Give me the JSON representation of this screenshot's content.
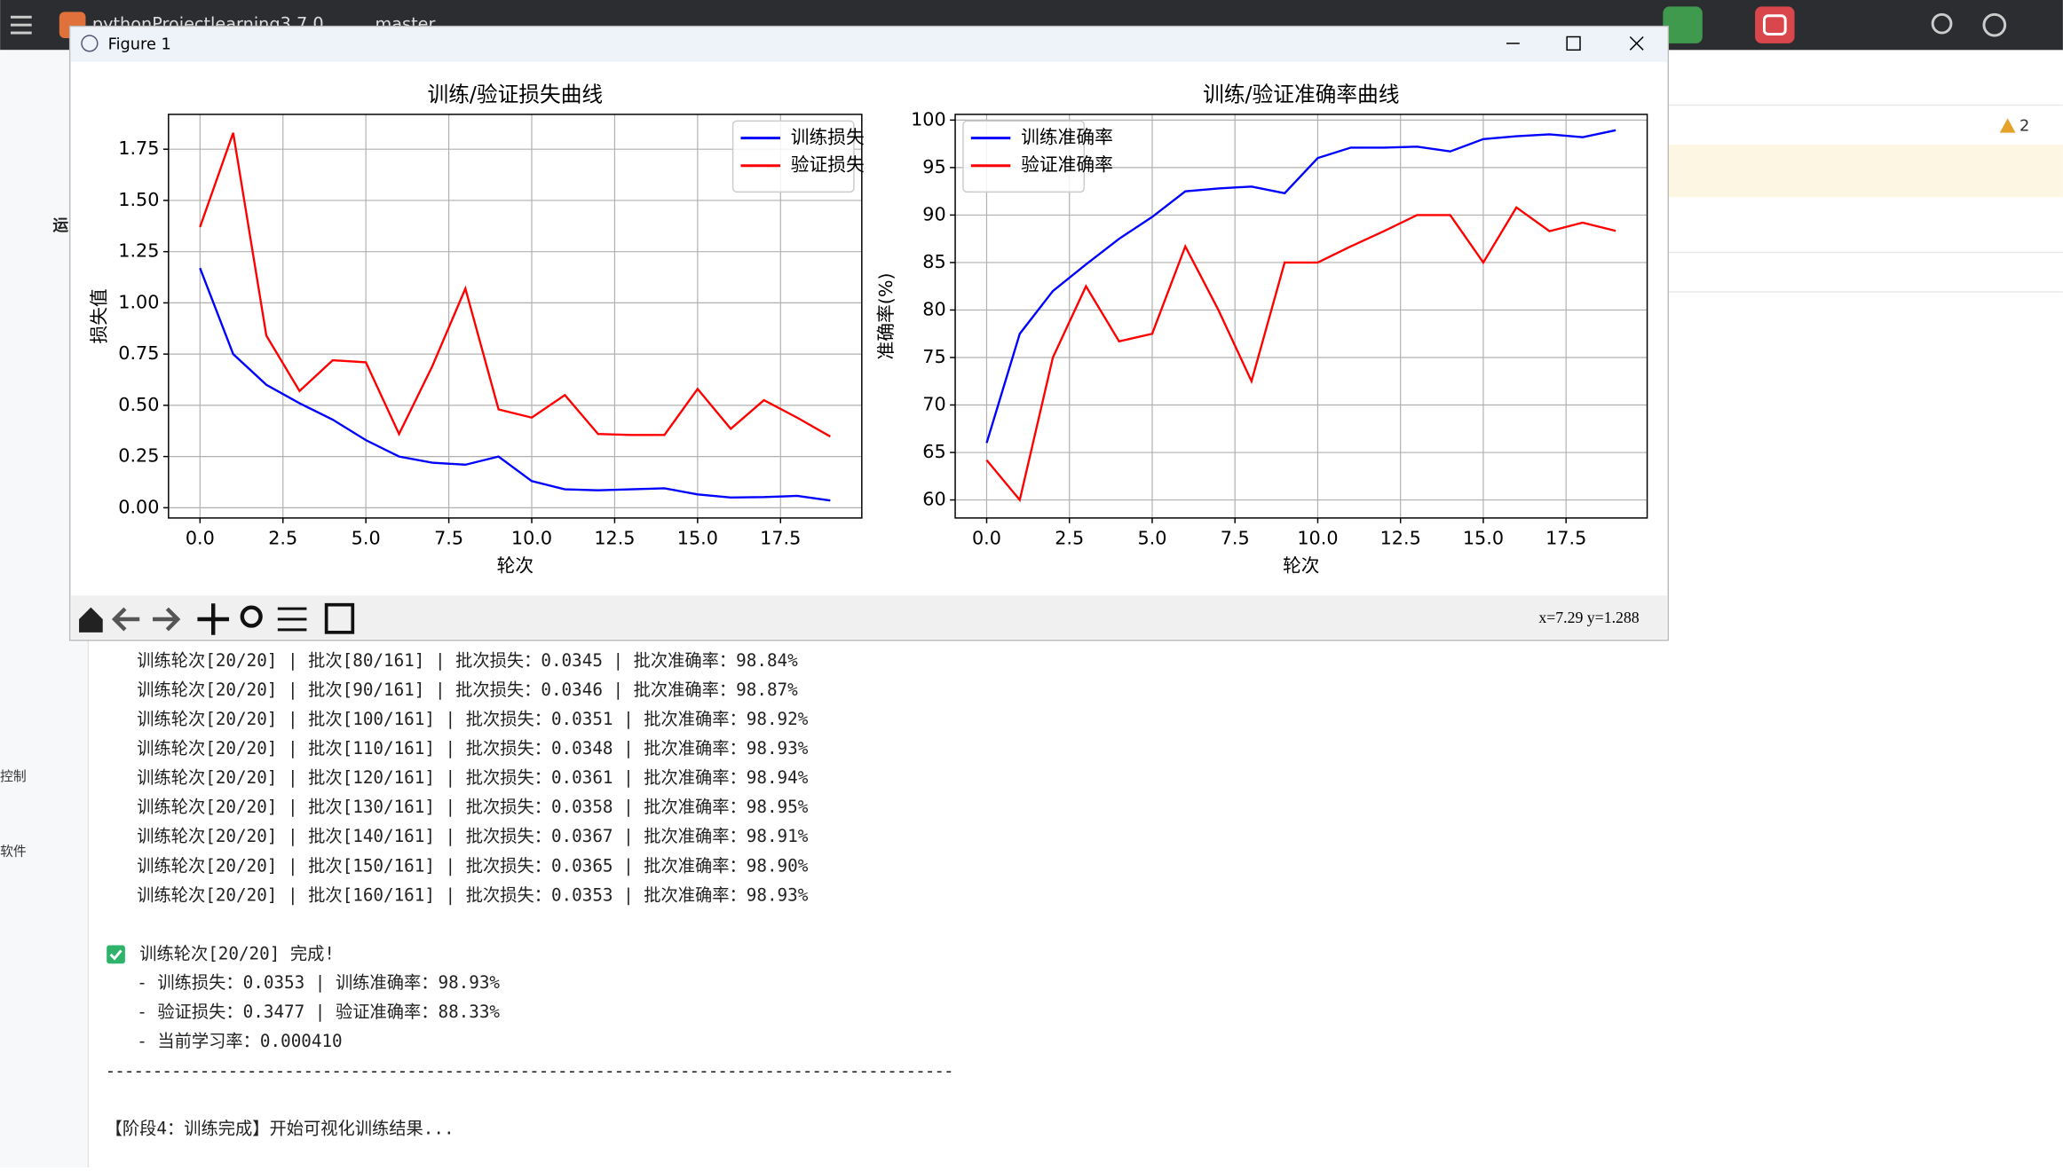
{
  "ide": {
    "project": "pythonProjectlearning3.7.0",
    "branch": "master",
    "sidebar": [
      "运",
      "控制",
      "软件"
    ],
    "warnings": "2"
  },
  "window": {
    "title": "Figure 1",
    "status": "x=7.29  y=1.288"
  },
  "chart_data": [
    {
      "type": "line",
      "title": "训练/验证损失曲线",
      "xlabel": "轮次",
      "ylabel": "损失值",
      "x": [
        0,
        1,
        2,
        3,
        4,
        5,
        6,
        7,
        8,
        9,
        10,
        11,
        12,
        13,
        14,
        15,
        16,
        17,
        18,
        19
      ],
      "series": [
        {
          "name": "训练损失",
          "color": "#0000ff",
          "values": [
            1.17,
            0.75,
            0.6,
            0.51,
            0.43,
            0.33,
            0.25,
            0.22,
            0.21,
            0.25,
            0.13,
            0.09,
            0.085,
            0.09,
            0.095,
            0.065,
            0.05,
            0.052,
            0.058,
            0.0353
          ]
        },
        {
          "name": "验证损失",
          "color": "#ff0000",
          "values": [
            1.37,
            1.83,
            0.84,
            0.57,
            0.72,
            0.71,
            0.36,
            0.69,
            1.07,
            0.48,
            0.44,
            0.55,
            0.36,
            0.355,
            0.355,
            0.58,
            0.385,
            0.525,
            0.44,
            0.3477
          ]
        }
      ],
      "xlim": [
        -0.95,
        19.95
      ],
      "ylim": [
        -0.05,
        1.92
      ],
      "xticks": [
        {
          "value": 0,
          "label": "0.0"
        },
        {
          "value": 2.5,
          "label": "2.5"
        },
        {
          "value": 5,
          "label": "5.0"
        },
        {
          "value": 7.5,
          "label": "7.5"
        },
        {
          "value": 10,
          "label": "10.0"
        },
        {
          "value": 12.5,
          "label": "12.5"
        },
        {
          "value": 15,
          "label": "15.0"
        },
        {
          "value": 17.5,
          "label": "17.5"
        }
      ],
      "yticks": [
        {
          "value": 0,
          "label": "0.00"
        },
        {
          "value": 0.25,
          "label": "0.25"
        },
        {
          "value": 0.5,
          "label": "0.50"
        },
        {
          "value": 0.75,
          "label": "0.75"
        },
        {
          "value": 1,
          "label": "1.00"
        },
        {
          "value": 1.25,
          "label": "1.25"
        },
        {
          "value": 1.5,
          "label": "1.50"
        },
        {
          "value": 1.75,
          "label": "1.75"
        }
      ],
      "grid": true,
      "legend": "upper right"
    },
    {
      "type": "line",
      "title": "训练/验证准确率曲线",
      "xlabel": "轮次",
      "ylabel": "准确率(%)",
      "x": [
        0,
        1,
        2,
        3,
        4,
        5,
        6,
        7,
        8,
        9,
        10,
        11,
        12,
        13,
        14,
        15,
        16,
        17,
        18,
        19
      ],
      "series": [
        {
          "name": "训练准确率",
          "color": "#0000ff",
          "values": [
            66,
            77.5,
            82,
            84.8,
            87.5,
            89.8,
            92.5,
            92.8,
            93,
            92.3,
            96,
            97.1,
            97.1,
            97.2,
            96.7,
            98,
            98.3,
            98.5,
            98.2,
            98.93
          ]
        },
        {
          "name": "验证准确率",
          "color": "#ff0000",
          "values": [
            64.2,
            60,
            75,
            82.5,
            76.7,
            77.5,
            86.7,
            80,
            72.5,
            85,
            85,
            86.7,
            88.3,
            90,
            90,
            85,
            90.8,
            88.3,
            89.2,
            88.33
          ]
        }
      ],
      "xlim": [
        -0.95,
        19.95
      ],
      "ylim": [
        58.1,
        100.6
      ],
      "xticks": [
        {
          "value": 0,
          "label": "0.0"
        },
        {
          "value": 2.5,
          "label": "2.5"
        },
        {
          "value": 5,
          "label": "5.0"
        },
        {
          "value": 7.5,
          "label": "7.5"
        },
        {
          "value": 10,
          "label": "10.0"
        },
        {
          "value": 12.5,
          "label": "12.5"
        },
        {
          "value": 15,
          "label": "15.0"
        },
        {
          "value": 17.5,
          "label": "17.5"
        }
      ],
      "yticks": [
        60,
        65,
        70,
        75,
        80,
        85,
        90,
        95,
        100
      ],
      "grid": true,
      "legend": "upper left"
    }
  ],
  "console": {
    "lines": [
      "训练轮次[20/20] | 批次[80/161] | 批次损失：0.0345 | 批次准确率：98.84%",
      "训练轮次[20/20] | 批次[90/161] | 批次损失：0.0346 | 批次准确率：98.87%",
      "训练轮次[20/20] | 批次[100/161] | 批次损失：0.0351 | 批次准确率：98.92%",
      "训练轮次[20/20] | 批次[110/161] | 批次损失：0.0348 | 批次准确率：98.93%",
      "训练轮次[20/20] | 批次[120/161] | 批次损失：0.0361 | 批次准确率：98.94%",
      "训练轮次[20/20] | 批次[130/161] | 批次损失：0.0358 | 批次准确率：98.95%",
      "训练轮次[20/20] | 批次[140/161] | 批次损失：0.0367 | 批次准确率：98.91%",
      "训练轮次[20/20] | 批次[150/161] | 批次损失：0.0365 | 批次准确率：98.90%",
      "训练轮次[20/20] | 批次[160/161] | 批次损失：0.0353 | 批次准确率：98.93%"
    ],
    "done": "训练轮次[20/20] 完成!",
    "summary": [
      "- 训练损失：0.0353 | 训练准确率：98.93%",
      "- 验证损失：0.3477 | 验证准确率：88.33%",
      "- 当前学习率：0.000410"
    ],
    "divider": "------------------------------------------------------------------------------------------",
    "stage": "【阶段4：训练完成】开始可视化训练结果..."
  }
}
